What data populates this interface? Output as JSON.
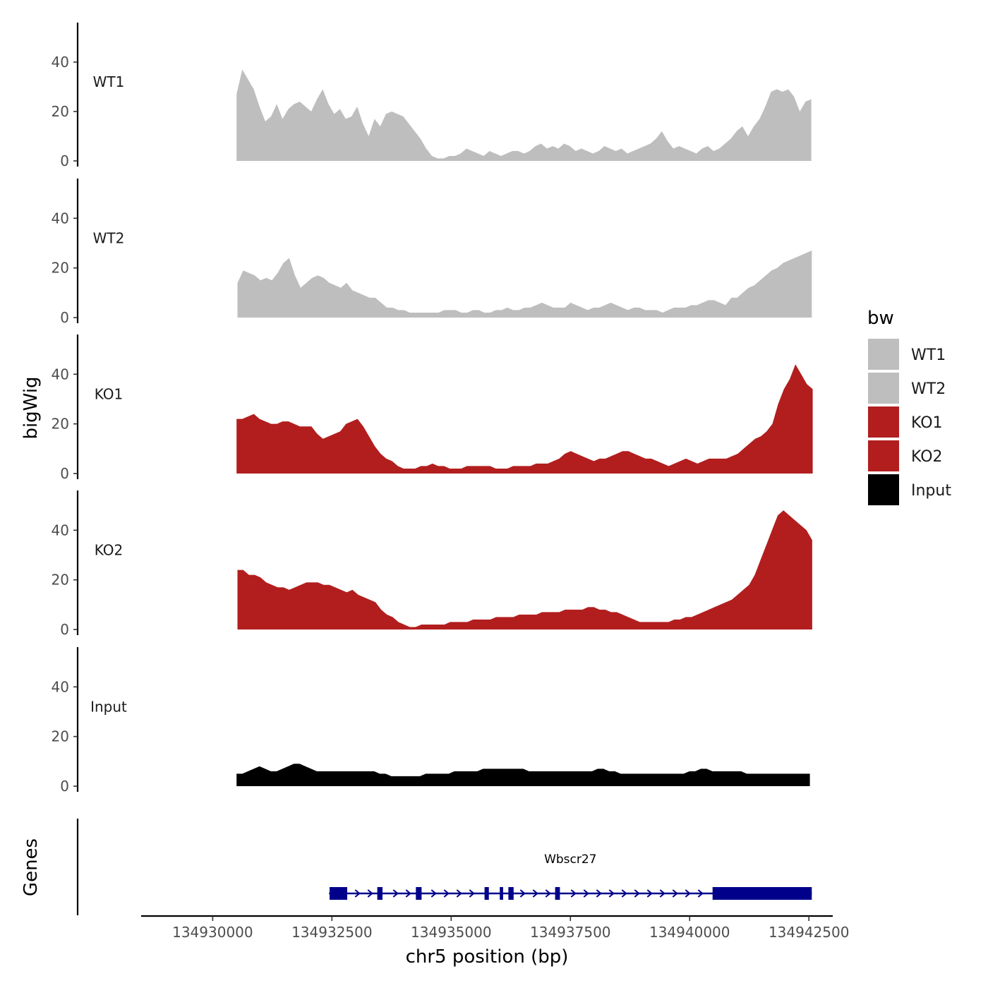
{
  "chart_data": {
    "type": "area",
    "region": {
      "chromosome": "chr5",
      "start": 134930500,
      "end": 134942550
    },
    "xlabel": "chr5 position (bp)",
    "ylabel": "bigWig",
    "xlim": [
      134928500,
      134943000
    ],
    "x_ticks": [
      134930000,
      134932500,
      134935000,
      134937500,
      134940000,
      134942500
    ],
    "x_tick_labels": [
      "134930000",
      "134932500",
      "134935000",
      "134937500",
      "134940000",
      "134942500"
    ],
    "ylim": [
      0,
      56
    ],
    "y_ticks": [
      0,
      20,
      40
    ],
    "y_tick_labels": [
      "0",
      "20",
      "40"
    ],
    "legend": {
      "title": "bw",
      "entries": [
        {
          "label": "WT1",
          "color": "#bebebe"
        },
        {
          "label": "WT2",
          "color": "#bebebe"
        },
        {
          "label": "KO1",
          "color": "#b21e1e"
        },
        {
          "label": "KO2",
          "color": "#b21e1e"
        },
        {
          "label": "Input",
          "color": "#000000"
        }
      ]
    },
    "series": [
      {
        "name": "WT1",
        "color": "#bebebe",
        "x_start": 134930500,
        "x_end": 134942550,
        "values": [
          27,
          37,
          33,
          29,
          22,
          16,
          18,
          23,
          17,
          21,
          23,
          24,
          22,
          20,
          25,
          29,
          23,
          19,
          21,
          17,
          18,
          22,
          15,
          10,
          17,
          14,
          19,
          20,
          19,
          18,
          15,
          12,
          9,
          5,
          2,
          1,
          1,
          2,
          2,
          3,
          5,
          4,
          3,
          2,
          4,
          3,
          2,
          3,
          4,
          4,
          3,
          4,
          6,
          7,
          5,
          6,
          5,
          7,
          6,
          4,
          5,
          4,
          3,
          4,
          6,
          5,
          4,
          5,
          3,
          4,
          5,
          6,
          7,
          9,
          12,
          8,
          5,
          6,
          5,
          4,
          3,
          5,
          6,
          4,
          5,
          7,
          9,
          12,
          14,
          10,
          14,
          17,
          22,
          28,
          29,
          28,
          29,
          26,
          20,
          24,
          25
        ]
      },
      {
        "name": "WT2",
        "color": "#bebebe",
        "x_start": 134930520,
        "x_end": 134942560,
        "values": [
          14,
          19,
          18,
          17,
          15,
          16,
          15,
          18,
          22,
          24,
          17,
          12,
          14,
          16,
          17,
          16,
          14,
          13,
          12,
          14,
          11,
          10,
          9,
          8,
          8,
          6,
          4,
          4,
          3,
          3,
          2,
          2,
          2,
          2,
          2,
          2,
          3,
          3,
          3,
          2,
          2,
          3,
          3,
          2,
          2,
          3,
          3,
          4,
          3,
          3,
          4,
          4,
          5,
          6,
          5,
          4,
          4,
          4,
          6,
          5,
          4,
          3,
          4,
          4,
          5,
          6,
          5,
          4,
          3,
          4,
          4,
          3,
          3,
          3,
          2,
          3,
          4,
          4,
          4,
          5,
          5,
          6,
          7,
          7,
          6,
          5,
          8,
          8,
          10,
          12,
          13,
          15,
          17,
          19,
          20,
          22,
          23,
          24,
          25,
          26,
          27
        ]
      },
      {
        "name": "KO1",
        "color": "#b21e1e",
        "x_start": 134930500,
        "x_end": 134942580,
        "values": [
          22,
          22,
          23,
          24,
          22,
          21,
          20,
          20,
          21,
          21,
          20,
          19,
          19,
          19,
          16,
          14,
          15,
          16,
          17,
          20,
          21,
          22,
          19,
          15,
          11,
          8,
          6,
          5,
          3,
          2,
          2,
          2,
          3,
          3,
          4,
          3,
          3,
          2,
          2,
          2,
          3,
          3,
          3,
          3,
          3,
          2,
          2,
          2,
          3,
          3,
          3,
          3,
          4,
          4,
          4,
          5,
          6,
          8,
          9,
          8,
          7,
          6,
          5,
          6,
          6,
          7,
          8,
          9,
          9,
          8,
          7,
          6,
          6,
          5,
          4,
          3,
          4,
          5,
          6,
          5,
          4,
          5,
          6,
          6,
          6,
          6,
          7,
          8,
          10,
          12,
          14,
          15,
          17,
          20,
          28,
          34,
          38,
          44,
          40,
          36,
          34
        ]
      },
      {
        "name": "KO2",
        "color": "#b21e1e",
        "x_start": 134930520,
        "x_end": 134942570,
        "values": [
          24,
          24,
          22,
          22,
          21,
          19,
          18,
          17,
          17,
          16,
          17,
          18,
          19,
          19,
          19,
          18,
          18,
          17,
          16,
          15,
          16,
          14,
          13,
          12,
          11,
          8,
          6,
          5,
          3,
          2,
          1,
          1,
          2,
          2,
          2,
          2,
          2,
          3,
          3,
          3,
          3,
          4,
          4,
          4,
          4,
          5,
          5,
          5,
          5,
          6,
          6,
          6,
          6,
          7,
          7,
          7,
          7,
          8,
          8,
          8,
          8,
          9,
          9,
          8,
          8,
          7,
          7,
          6,
          5,
          4,
          3,
          3,
          3,
          3,
          3,
          3,
          4,
          4,
          5,
          5,
          6,
          7,
          8,
          9,
          10,
          11,
          12,
          14,
          16,
          18,
          22,
          28,
          34,
          40,
          46,
          48,
          46,
          44,
          42,
          40,
          36
        ]
      },
      {
        "name": "Input",
        "color": "#000000",
        "x_start": 134930500,
        "x_end": 134942520,
        "values": [
          5,
          5,
          6,
          7,
          8,
          7,
          6,
          6,
          7,
          8,
          9,
          9,
          8,
          7,
          6,
          6,
          6,
          6,
          6,
          6,
          6,
          6,
          6,
          6,
          6,
          5,
          5,
          4,
          4,
          4,
          4,
          4,
          4,
          5,
          5,
          5,
          5,
          5,
          6,
          6,
          6,
          6,
          6,
          7,
          7,
          7,
          7,
          7,
          7,
          7,
          7,
          6,
          6,
          6,
          6,
          6,
          6,
          6,
          6,
          6,
          6,
          6,
          6,
          7,
          7,
          6,
          6,
          5,
          5,
          5,
          5,
          5,
          5,
          5,
          5,
          5,
          5,
          5,
          5,
          6,
          6,
          7,
          7,
          6,
          6,
          6,
          6,
          6,
          6,
          5,
          5,
          5,
          5,
          5,
          5,
          5,
          5,
          5,
          5,
          5,
          5
        ]
      }
    ],
    "genes_track": {
      "label": "Genes",
      "gene_name": "Wbscr27",
      "strand": "+",
      "color": "#00008b",
      "start": 134932440,
      "end": 134942560,
      "exons": [
        {
          "start": 134932450,
          "end": 134932820
        },
        {
          "start": 134933450,
          "end": 134933560
        },
        {
          "start": 134934260,
          "end": 134934380
        },
        {
          "start": 134935700,
          "end": 134935790
        },
        {
          "start": 134936020,
          "end": 134936090
        },
        {
          "start": 134936200,
          "end": 134936310
        },
        {
          "start": 134937180,
          "end": 134937280
        },
        {
          "start": 134940480,
          "end": 134942560
        }
      ]
    }
  }
}
